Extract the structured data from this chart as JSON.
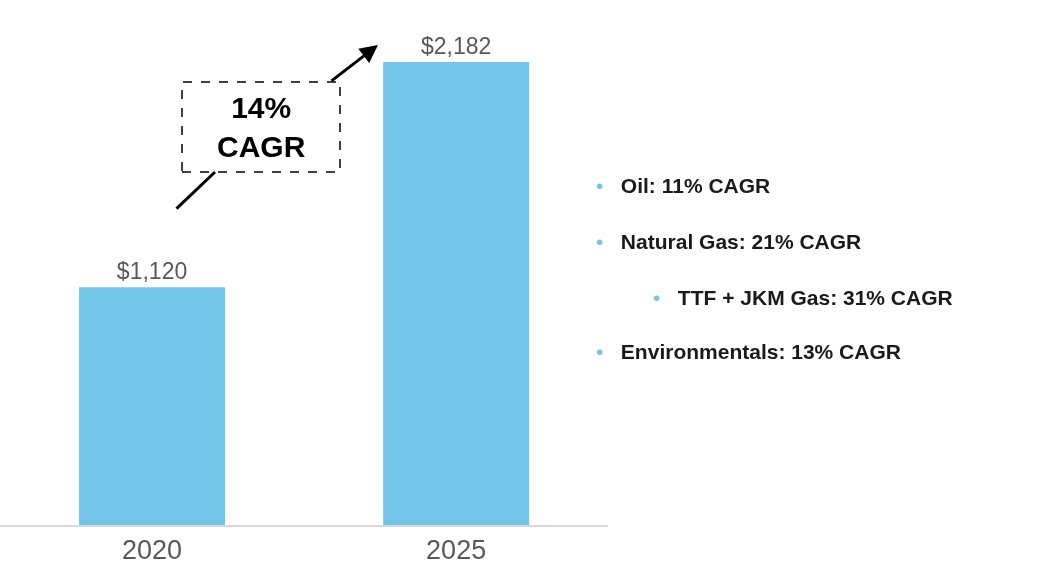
{
  "chart_data": {
    "type": "bar",
    "categories": [
      "2020",
      "2025"
    ],
    "values": [
      1120,
      2182
    ],
    "color": "#72c5e8",
    "value_labels": [
      "$1,120",
      "$2,182"
    ],
    "annotations": [
      "14% CAGR",
      "• Oil: 11% CAGR",
      "• Natural Gas: 21% CAGR",
      "• TTF + JKM Gas: 31% CAGR",
      "• Environmentals: 13% CAGR"
    ],
    "legend": false
  }
}
